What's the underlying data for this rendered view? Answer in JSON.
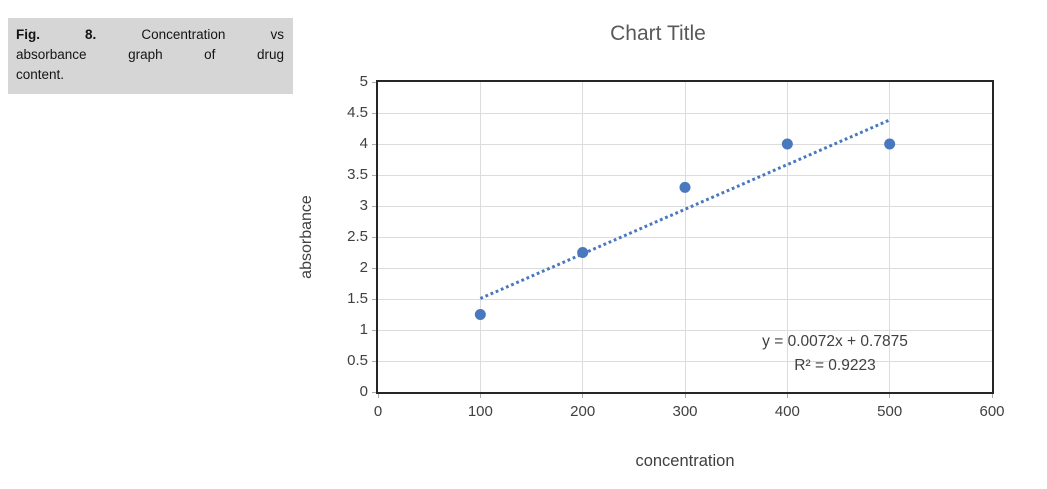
{
  "figure_caption": {
    "line1_words": [
      "Fig.",
      "8.",
      "Concentration",
      "vs"
    ],
    "line2_words": [
      "absorbance",
      "graph",
      "of",
      "drug"
    ],
    "line3": "content."
  },
  "chart_data": {
    "type": "scatter",
    "title": "Chart Title",
    "xlabel": "concentration",
    "ylabel": "absorbance",
    "xlim": [
      0,
      600
    ],
    "ylim": [
      0,
      5
    ],
    "x_ticks": [
      0,
      100,
      200,
      300,
      400,
      500,
      600
    ],
    "y_ticks": [
      0,
      0.5,
      1,
      1.5,
      2,
      2.5,
      3,
      3.5,
      4,
      4.5,
      5
    ],
    "grid": true,
    "legend": "none",
    "points": [
      {
        "x": 100,
        "y": 1.25
      },
      {
        "x": 200,
        "y": 2.25
      },
      {
        "x": 300,
        "y": 3.3
      },
      {
        "x": 400,
        "y": 4.0
      },
      {
        "x": 500,
        "y": 4.0
      }
    ],
    "trendline": {
      "style": "dotted",
      "slope": 0.0072,
      "intercept": 0.7875,
      "x_start": 100,
      "x_end": 500,
      "equation": "y = 0.0072x + 0.7875",
      "r_squared": "R² = 0.9223"
    },
    "colors": {
      "marker": "#4878BE",
      "trendline": "#4878BE",
      "gridline": "#DCDCDC",
      "plot_border": "#262626",
      "title_text": "#595959",
      "axis_text": "#404040",
      "caption_background": "#D6D6D6"
    }
  }
}
